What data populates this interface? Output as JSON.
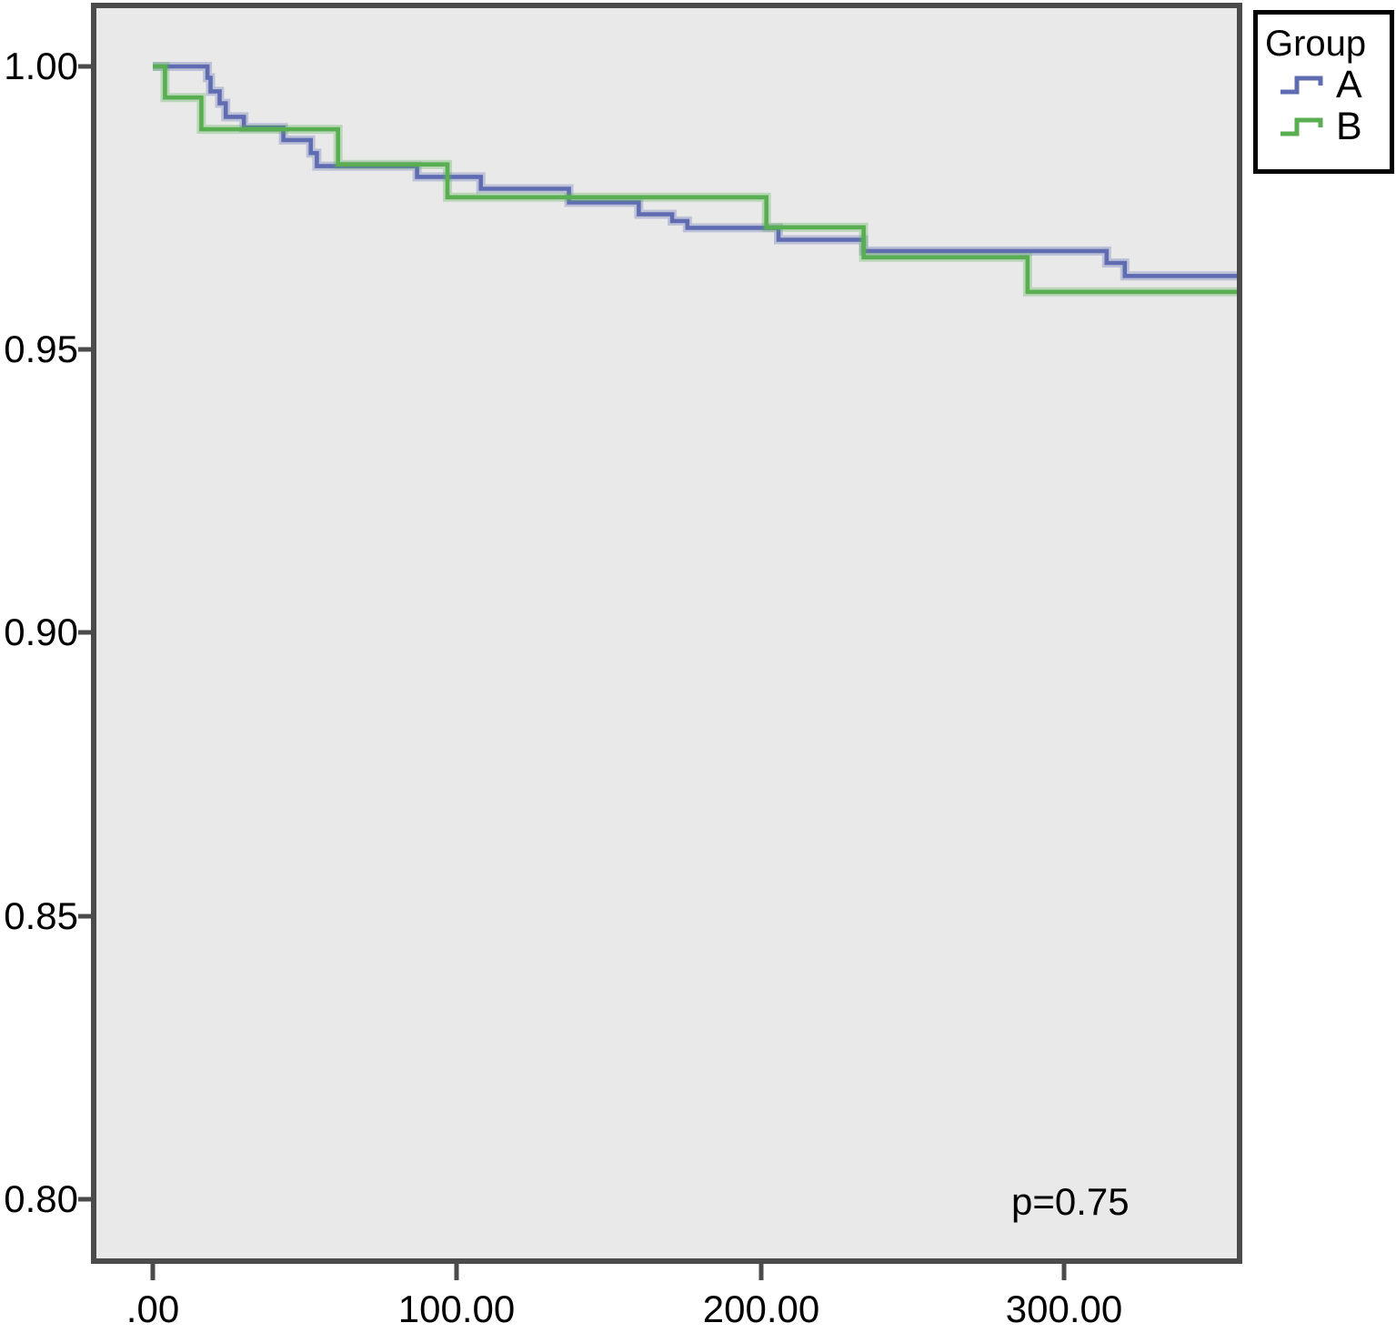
{
  "legend": {
    "title": "Group",
    "entries": [
      {
        "label": "A",
        "color": "#5f6cb2"
      },
      {
        "label": "B",
        "color": "#58ae50"
      }
    ]
  },
  "annotation": {
    "p_value": "p=0.75"
  },
  "axes": {
    "y_tick_labels": [
      "1.00",
      "0.95",
      "0.90",
      "0.85",
      "0.80"
    ],
    "x_tick_labels": [
      ".00",
      "100.00",
      "200.00",
      "300.00"
    ]
  },
  "colors": {
    "plot_background": "#e9e9e9",
    "frame": "#4b4b4b",
    "group_a": "#5f6cb2",
    "group_b": "#58ae50"
  },
  "chart_data": {
    "type": "line",
    "subtype": "kaplan_meier_step",
    "title": "",
    "xlabel": "",
    "ylabel": "",
    "grid": false,
    "legend_title": "Group",
    "legend_position": "top-right-outside",
    "annotation": "p=0.75",
    "x_tick_values": [
      0,
      100,
      200,
      300
    ],
    "y_tick_values": [
      1.0,
      0.95,
      0.9,
      0.85,
      0.8
    ],
    "xlim": [
      -19,
      357
    ],
    "ylim": [
      0.789,
      1.01
    ],
    "series": [
      {
        "name": "A",
        "color": "#5f6cb2",
        "steps": [
          [
            0,
            1.0
          ],
          [
            18,
            0.998
          ],
          [
            19,
            0.9956
          ],
          [
            22,
            0.9935
          ],
          [
            24,
            0.9911
          ],
          [
            30,
            0.9892
          ],
          [
            43,
            0.987
          ],
          [
            52,
            0.9847
          ],
          [
            54,
            0.9824
          ],
          [
            87,
            0.9805
          ],
          [
            108,
            0.9784
          ],
          [
            137,
            0.976
          ],
          [
            160,
            0.9739
          ],
          [
            171,
            0.9727
          ],
          [
            176,
            0.9715
          ],
          [
            206,
            0.9694
          ],
          [
            234,
            0.9674
          ],
          [
            314,
            0.9653
          ],
          [
            320,
            0.963
          ]
        ],
        "end_value": 0.963
      },
      {
        "name": "B",
        "color": "#58ae50",
        "steps": [
          [
            0,
            1.0
          ],
          [
            4,
            0.9945
          ],
          [
            16,
            0.9889
          ],
          [
            61,
            0.9827
          ],
          [
            97,
            0.9769
          ],
          [
            202,
            0.9716
          ],
          [
            234,
            0.9663
          ],
          [
            288,
            0.9602
          ]
        ],
        "end_value": 0.9602
      }
    ]
  }
}
